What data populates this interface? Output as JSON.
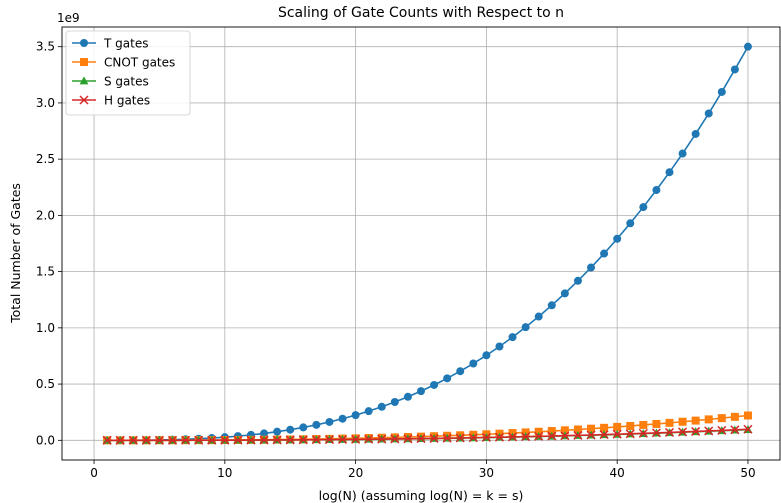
{
  "chart_data": {
    "type": "line",
    "title": "Scaling of Gate Counts with Respect to n",
    "xlabel": "log(N) (assuming log(N) = k = s)",
    "ylabel": "Total Number of Gates",
    "y_offset_label": "1e9",
    "y_scale": 1000000000,
    "xlim": [
      -2.45,
      52.45
    ],
    "ylim": [
      -0.175,
      3.675
    ],
    "x_ticks": [
      0,
      10,
      20,
      30,
      40,
      50
    ],
    "x_tick_labels": [
      "0",
      "10",
      "20",
      "30",
      "40",
      "50"
    ],
    "y_ticks": [
      0.0,
      0.5,
      1.0,
      1.5,
      2.0,
      2.5,
      3.0,
      3.5
    ],
    "y_tick_labels": [
      "0.0",
      "0.5",
      "1.0",
      "1.5",
      "2.0",
      "2.5",
      "3.0",
      "3.5"
    ],
    "grid": true,
    "legend_position": "top-left",
    "x": [
      1,
      2,
      3,
      4,
      5,
      6,
      7,
      8,
      9,
      10,
      11,
      12,
      13,
      14,
      15,
      16,
      17,
      18,
      19,
      20,
      21,
      22,
      23,
      24,
      25,
      26,
      27,
      28,
      29,
      30,
      31,
      32,
      33,
      34,
      35,
      36,
      37,
      38,
      39,
      40,
      41,
      42,
      43,
      44,
      45,
      46,
      47,
      48,
      49,
      50
    ],
    "series": [
      {
        "name": "T gates",
        "color": "#1f77b4",
        "marker": "circle",
        "values": [
          3e-05,
          0.00022,
          0.00076,
          0.00179,
          0.0035,
          0.00605,
          0.0096,
          0.01434,
          0.02041,
          0.028,
          0.03727,
          0.04838,
          0.06152,
          0.07683,
          0.0945,
          0.11469,
          0.13756,
          0.16329,
          0.19205,
          0.224,
          0.25931,
          0.29814,
          0.34068,
          0.38707,
          0.4375,
          0.49213,
          0.55112,
          0.61466,
          0.68289,
          0.756,
          0.83415,
          0.91751,
          1.00626,
          1.10054,
          1.2005,
          1.30637,
          1.41826,
          1.53636,
          1.66082,
          1.792,
          1.92954,
          2.07397,
          2.22544,
          2.38403,
          2.55,
          2.72387,
          2.90622,
          3.09742,
          3.2974,
          3.5
        ]
      },
      {
        "name": "CNOT gates",
        "color": "#ff7f0e",
        "marker": "square",
        "values": [
          0.0,
          0.0,
          0.0,
          0.0001,
          0.0003,
          0.0005,
          0.0009,
          0.0013,
          0.0018,
          0.0025,
          0.0032,
          0.0041,
          0.0052,
          0.0064,
          0.0078,
          0.0094,
          0.0112,
          0.0132,
          0.0154,
          0.0178,
          0.0204,
          0.0232,
          0.0262,
          0.0294,
          0.0328,
          0.0365,
          0.0405,
          0.0447,
          0.0492,
          0.054,
          0.0591,
          0.0645,
          0.0702,
          0.0762,
          0.0825,
          0.0892,
          0.0962,
          0.1035,
          0.1112,
          0.1193,
          0.1277,
          0.1365,
          0.1456,
          0.1552,
          0.1651,
          0.1754,
          0.1861,
          0.1972,
          0.2087,
          0.2206
        ]
      },
      {
        "name": "S gates",
        "color": "#2ca02c",
        "marker": "triangle",
        "values": [
          0.0,
          0.0,
          0.0,
          0.0,
          0.0001,
          0.0002,
          0.0004,
          0.0006,
          0.0008,
          0.0011,
          0.0015,
          0.0019,
          0.0024,
          0.0029,
          0.0036,
          0.0043,
          0.0051,
          0.006,
          0.007,
          0.008,
          0.0092,
          0.0105,
          0.0118,
          0.0133,
          0.0148,
          0.0165,
          0.0183,
          0.0202,
          0.0222,
          0.0243,
          0.0266,
          0.029,
          0.0315,
          0.0342,
          0.0369,
          0.0398,
          0.0428,
          0.046,
          0.0493,
          0.0527,
          0.0562,
          0.06,
          0.0638,
          0.0679,
          0.072,
          0.0764,
          0.0808,
          0.0855,
          0.0903,
          0.0952
        ]
      },
      {
        "name": "H gates",
        "color": "#d62728",
        "marker": "x",
        "values": [
          0.0,
          0.0,
          0.0,
          0.0,
          0.0001,
          0.0002,
          0.0004,
          0.0006,
          0.0008,
          0.0011,
          0.0015,
          0.0019,
          0.0024,
          0.003,
          0.0036,
          0.0044,
          0.0052,
          0.0061,
          0.0071,
          0.0082,
          0.0094,
          0.0107,
          0.0121,
          0.0136,
          0.0152,
          0.0169,
          0.0188,
          0.0207,
          0.0228,
          0.025,
          0.0273,
          0.0298,
          0.0324,
          0.0351,
          0.0379,
          0.0409,
          0.0441,
          0.0473,
          0.0508,
          0.0543,
          0.058,
          0.0619,
          0.0659,
          0.07,
          0.0743,
          0.0788,
          0.0834,
          0.0882,
          0.0932,
          0.0983
        ]
      }
    ]
  }
}
